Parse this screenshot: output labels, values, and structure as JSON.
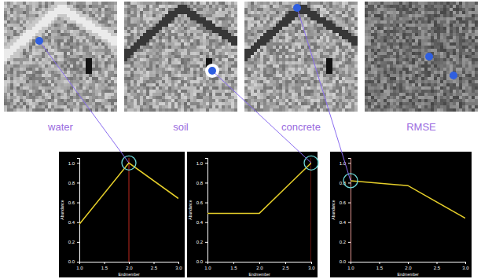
{
  "images": [
    {
      "label": "water"
    },
    {
      "label": "soil"
    },
    {
      "label": "concrete"
    },
    {
      "label": "RMSE"
    }
  ],
  "chart_data": [
    {
      "type": "line",
      "x": [
        1,
        2,
        3
      ],
      "values": [
        0.38,
        1.0,
        0.64
      ],
      "color": "#e6cf2a",
      "xlabel": "Endmember",
      "ylabel": "Abundance",
      "xlim": [
        1,
        3
      ],
      "ylim": [
        0,
        1.05
      ],
      "xticks": [
        {
          "value": 1,
          "label": "1.0"
        },
        {
          "value": 1.5,
          "label": "1.5"
        },
        {
          "value": 2,
          "label": "2.0"
        },
        {
          "value": 2.5,
          "label": "2.5"
        },
        {
          "value": 3,
          "label": "3.0"
        }
      ],
      "yticks": [
        {
          "value": 0,
          "label": "0.0"
        },
        {
          "value": 0.2,
          "label": "0.2"
        },
        {
          "value": 0.4,
          "label": "0.4"
        },
        {
          "value": 0.6,
          "label": "0.6"
        },
        {
          "value": 0.8,
          "label": "0.8"
        },
        {
          "value": 1,
          "label": "1.0"
        }
      ],
      "selected_x": 2
    },
    {
      "type": "line",
      "x": [
        1,
        2,
        3
      ],
      "values": [
        0.49,
        0.49,
        1.0
      ],
      "color": "#e6cf2a",
      "xlabel": "Endmember",
      "ylabel": "Abundance",
      "xlim": [
        1,
        3
      ],
      "ylim": [
        0,
        1.05
      ],
      "xticks": [
        {
          "value": 1,
          "label": "1.0"
        },
        {
          "value": 1.5,
          "label": "1.5"
        },
        {
          "value": 2,
          "label": "2.0"
        },
        {
          "value": 2.5,
          "label": "2.5"
        },
        {
          "value": 3,
          "label": "3.0"
        }
      ],
      "yticks": [
        {
          "value": 0,
          "label": "0.0"
        },
        {
          "value": 0.2,
          "label": "0.2"
        },
        {
          "value": 0.4,
          "label": "0.4"
        },
        {
          "value": 0.6,
          "label": "0.6"
        },
        {
          "value": 0.8,
          "label": "0.8"
        },
        {
          "value": 1,
          "label": "1.0"
        }
      ],
      "selected_x": 3
    },
    {
      "type": "line",
      "x": [
        1,
        2,
        3
      ],
      "values": [
        0.82,
        0.77,
        0.44
      ],
      "color": "#e6cf2a",
      "xlabel": "Endmember",
      "ylabel": "Abundance",
      "xlim": [
        1,
        3
      ],
      "ylim": [
        0,
        1.05
      ],
      "xticks": [
        {
          "value": 1,
          "label": "1.0"
        },
        {
          "value": 1.5,
          "label": "1.5"
        },
        {
          "value": 2,
          "label": "2.0"
        },
        {
          "value": 2.5,
          "label": "2.5"
        },
        {
          "value": 3,
          "label": "3.0"
        }
      ],
      "yticks": [
        {
          "value": 0,
          "label": "0.0"
        },
        {
          "value": 0.2,
          "label": "0.2"
        },
        {
          "value": 0.4,
          "label": "0.4"
        },
        {
          "value": 0.6,
          "label": "0.6"
        },
        {
          "value": 0.8,
          "label": "0.8"
        },
        {
          "value": 1,
          "label": "1.0"
        }
      ],
      "selected_x": 1
    }
  ]
}
